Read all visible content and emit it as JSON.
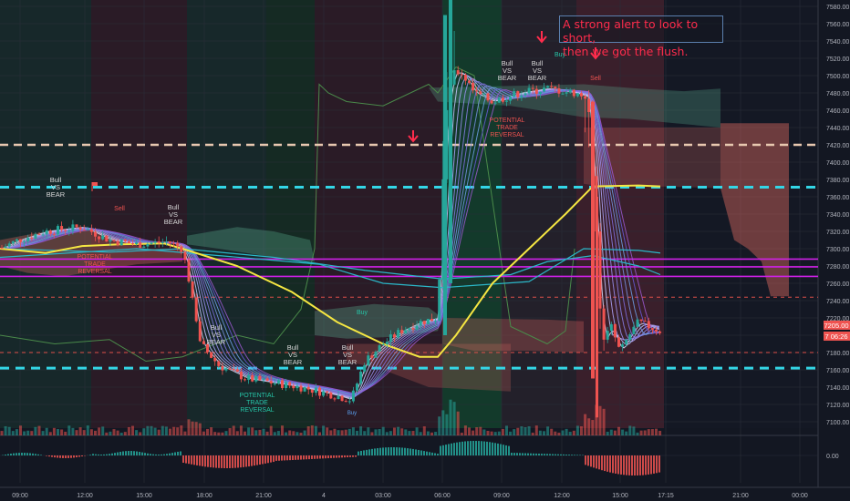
{
  "chart_data": {
    "type": "candlestick",
    "ylim": [
      7090,
      7590
    ],
    "y_ticks": [
      "7580.00",
      "7560.00",
      "7540.00",
      "7520.00",
      "7500.00",
      "7480.00",
      "7460.00",
      "7440.00",
      "7420.00",
      "7400.00",
      "7380.00",
      "7360.00",
      "7340.00",
      "7320.00",
      "7300.00",
      "7280.00",
      "7260.00",
      "7240.00",
      "7220.00",
      "7200.00",
      "7180.00",
      "7160.00",
      "7140.00",
      "7120.00",
      "7100.00"
    ],
    "x_ticks": [
      "09:00",
      "12:00",
      "15:00",
      "18:00",
      "21:00",
      "4",
      "03:00",
      "06:00",
      "09:00",
      "12:00",
      "15:00",
      "17:15",
      "21:00",
      "00:00"
    ],
    "price_badges": {
      "last_price": "7205.00",
      "countdown": "7 06:26"
    },
    "oscillator_tick": "0.00",
    "levels": [
      {
        "price": 7420,
        "color": "#e8c8b0",
        "style": "dashed"
      },
      {
        "price": 7371,
        "color": "#33d6e6",
        "style": "dashed-thick"
      },
      {
        "price": 7162,
        "color": "#33d6e6",
        "style": "dashed-thick"
      },
      {
        "price": 7244,
        "color": "#e0504a",
        "style": "dashed-thin"
      },
      {
        "price": 7180,
        "color": "#e0504a",
        "style": "dashed-thin"
      },
      {
        "price": 7288,
        "color": "#d020e8",
        "style": "solid"
      },
      {
        "price": 7279,
        "color": "#d020e8",
        "style": "solid"
      },
      {
        "price": 7268,
        "color": "#d020e8",
        "style": "solid"
      }
    ],
    "annotations": {
      "callout_line1": "A strong alert to look to short,",
      "callout_line2": "then we got the flush.",
      "labels": [
        "Bull",
        "VS",
        "BEAR",
        "POTENTIAL",
        "TRADE",
        "REVERSAL",
        "Buy",
        "Sell",
        "Bull VS BEAR",
        "Bull VS BEAR",
        "Bull VS BEAR"
      ]
    },
    "colors": {
      "up": "#26a69a",
      "down": "#ef5350",
      "ma_yellow": "#f5e642",
      "magenta": "#d020e8",
      "cyan": "#33d6e6",
      "alert": "#ff2c4c"
    }
  }
}
